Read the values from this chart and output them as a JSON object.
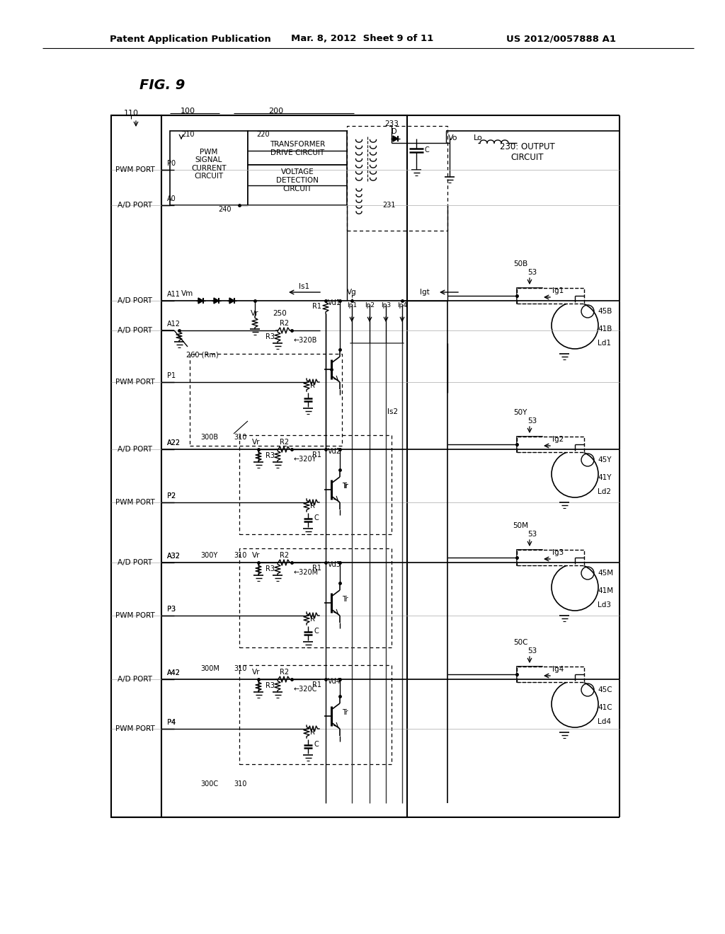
{
  "title_left": "Patent Application Publication",
  "title_center": "Mar. 8, 2012  Sheet 9 of 11",
  "title_right": "US 2012/0057888 A1",
  "fig_label": "FIG. 9",
  "bg_color": "#ffffff",
  "lc": "#000000",
  "tc": "#000000"
}
